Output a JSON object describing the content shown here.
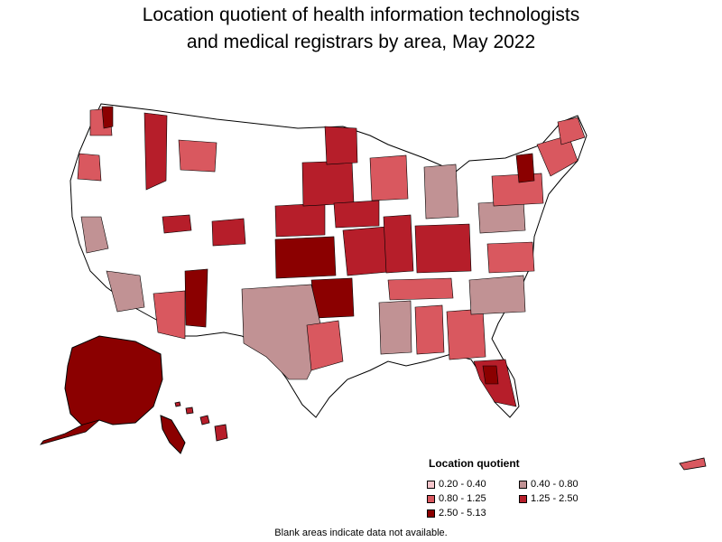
{
  "title": {
    "line1": "Location quotient of health information technologists",
    "line2": "and medical registrars by area, May 2022"
  },
  "legend": {
    "title": "Location quotient",
    "items": [
      {
        "label": "0.20 - 0.40",
        "color": "#f6c6cc"
      },
      {
        "label": "0.40 - 0.80",
        "color": "#c19294"
      },
      {
        "label": "0.80 - 1.25",
        "color": "#d9585f"
      },
      {
        "label": "1.25 - 2.50",
        "color": "#b61e2a"
      },
      {
        "label": "2.50 - 5.13",
        "color": "#8b0000"
      }
    ]
  },
  "note": "Blank areas indicate data not available."
}
